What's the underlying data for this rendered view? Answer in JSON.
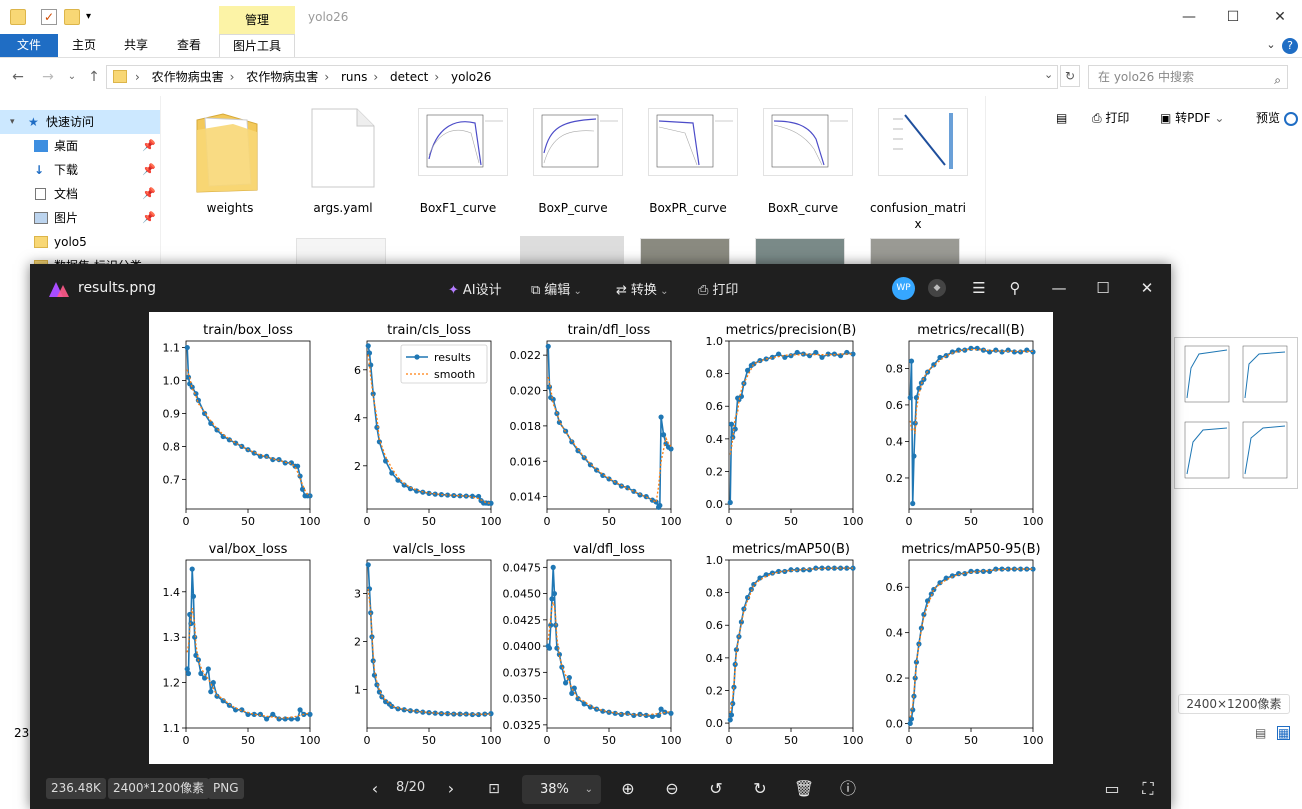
{
  "explorer": {
    "title": "yolo26",
    "context_tab": "管理",
    "ribbon_tabs": [
      "文件",
      "主页",
      "共享",
      "查看",
      "图片工具"
    ],
    "address": [
      "农作物病虫害",
      "农作物病虫害",
      "runs",
      "detect",
      "yolo26"
    ],
    "search_placeholder": "在 yolo26 中搜索",
    "nav": [
      {
        "label": "快速访问",
        "icon": "star-icon"
      },
      {
        "label": "桌面",
        "icon": "desktop-icon",
        "pinned": true
      },
      {
        "label": "下载",
        "icon": "download-icon",
        "pinned": true
      },
      {
        "label": "文档",
        "icon": "document-icon",
        "pinned": true
      },
      {
        "label": "图片",
        "icon": "picture-icon",
        "pinned": true
      },
      {
        "label": "yolo5",
        "icon": "folder-icon"
      },
      {
        "label": "数据集 标识分类",
        "icon": "folder-icon"
      }
    ],
    "status_count": "23",
    "files": [
      {
        "name": "weights",
        "kind": "folder"
      },
      {
        "name": "args.yaml",
        "kind": "file"
      },
      {
        "name": "BoxF1_curve",
        "kind": "image"
      },
      {
        "name": "BoxP_curve",
        "kind": "image"
      },
      {
        "name": "BoxPR_curve",
        "kind": "image"
      },
      {
        "name": "BoxR_curve",
        "kind": "image"
      },
      {
        "name": "confusion_matrix",
        "kind": "image"
      }
    ],
    "toolbar": {
      "print": "打印",
      "to_pdf": "转PDF",
      "preview": "预览"
    },
    "image_size": "2400×1200像素"
  },
  "viewer": {
    "title": "results.png",
    "tools": {
      "ai": "AI设计",
      "edit": "编辑",
      "convert": "转换",
      "print": "打印"
    },
    "avatar": "WP",
    "file_size": "236.48K",
    "dimensions": "2400*1200像素",
    "format": "PNG",
    "page": "8/20",
    "zoom": "38%"
  },
  "chart_data": [
    {
      "type": "line",
      "title": "train/box_loss",
      "xlim": [
        0,
        100
      ],
      "ylim": [
        0.61,
        1.12
      ],
      "yticks": [
        "0.7",
        "0.8",
        "0.9",
        "1.0",
        "1.1"
      ],
      "x": [
        1,
        2,
        3,
        5,
        8,
        10,
        15,
        20,
        25,
        30,
        35,
        40,
        45,
        50,
        55,
        60,
        65,
        70,
        75,
        80,
        85,
        88,
        90,
        92,
        94,
        96,
        98,
        100
      ],
      "values": [
        1.1,
        1.01,
        0.99,
        0.98,
        0.96,
        0.94,
        0.9,
        0.87,
        0.85,
        0.83,
        0.82,
        0.81,
        0.8,
        0.79,
        0.78,
        0.77,
        0.77,
        0.76,
        0.76,
        0.75,
        0.75,
        0.74,
        0.74,
        0.71,
        0.67,
        0.65,
        0.65,
        0.65
      ]
    },
    {
      "type": "line",
      "title": "train/cls_loss",
      "legend": [
        "results",
        "smooth"
      ],
      "xlim": [
        0,
        100
      ],
      "ylim": [
        0.2,
        7.2
      ],
      "yticks": [
        "2",
        "4",
        "6"
      ],
      "x": [
        1,
        2,
        3,
        5,
        8,
        10,
        15,
        20,
        25,
        30,
        35,
        40,
        45,
        50,
        55,
        60,
        65,
        70,
        75,
        80,
        85,
        90,
        92,
        94,
        96,
        98,
        100
      ],
      "values": [
        7.0,
        6.7,
        6.2,
        5.0,
        3.6,
        3.0,
        2.2,
        1.7,
        1.4,
        1.2,
        1.05,
        0.95,
        0.9,
        0.85,
        0.82,
        0.8,
        0.78,
        0.76,
        0.75,
        0.74,
        0.73,
        0.72,
        0.55,
        0.45,
        0.45,
        0.44,
        0.44
      ]
    },
    {
      "type": "line",
      "title": "train/dfl_loss",
      "xlim": [
        0,
        100
      ],
      "ylim": [
        0.0133,
        0.0228
      ],
      "yticks": [
        "0.014",
        "0.016",
        "0.018",
        "0.020",
        "0.022"
      ],
      "x": [
        1,
        2,
        3,
        5,
        8,
        10,
        15,
        20,
        25,
        30,
        35,
        40,
        45,
        50,
        55,
        60,
        65,
        70,
        75,
        80,
        85,
        88,
        90,
        91,
        92,
        94,
        96,
        98,
        100
      ],
      "values": [
        0.0225,
        0.0202,
        0.0196,
        0.0195,
        0.0187,
        0.0182,
        0.0177,
        0.0171,
        0.0166,
        0.0162,
        0.0158,
        0.0155,
        0.0152,
        0.015,
        0.0148,
        0.0146,
        0.0145,
        0.0143,
        0.0141,
        0.014,
        0.0138,
        0.0137,
        0.0134,
        0.0135,
        0.0185,
        0.0175,
        0.017,
        0.0168,
        0.0167
      ]
    },
    {
      "type": "line",
      "title": "metrics/precision(B)",
      "xlim": [
        0,
        100
      ],
      "ylim": [
        -0.03,
        1.0
      ],
      "yticks": [
        "0.0",
        "0.2",
        "0.4",
        "0.6",
        "0.8",
        "1.0"
      ],
      "x": [
        1,
        2,
        3,
        5,
        7,
        8,
        10,
        12,
        15,
        18,
        20,
        25,
        30,
        35,
        40,
        45,
        50,
        55,
        60,
        65,
        70,
        75,
        80,
        85,
        90,
        95,
        100
      ],
      "values": [
        0.01,
        0.49,
        0.41,
        0.46,
        0.65,
        0.64,
        0.66,
        0.74,
        0.82,
        0.85,
        0.86,
        0.88,
        0.89,
        0.9,
        0.92,
        0.9,
        0.91,
        0.93,
        0.92,
        0.91,
        0.93,
        0.9,
        0.92,
        0.92,
        0.91,
        0.93,
        0.92
      ]
    },
    {
      "type": "line",
      "title": "metrics/recall(B)",
      "xlim": [
        0,
        100
      ],
      "ylim": [
        0.03,
        0.95
      ],
      "yticks": [
        "0.2",
        "0.4",
        "0.6",
        "0.8"
      ],
      "x": [
        1,
        2,
        3,
        4,
        5,
        6,
        8,
        10,
        12,
        15,
        20,
        25,
        30,
        35,
        40,
        45,
        50,
        55,
        60,
        65,
        70,
        75,
        80,
        85,
        90,
        95,
        100
      ],
      "values": [
        0.64,
        0.84,
        0.06,
        0.32,
        0.5,
        0.64,
        0.69,
        0.72,
        0.74,
        0.78,
        0.82,
        0.86,
        0.87,
        0.89,
        0.9,
        0.9,
        0.91,
        0.91,
        0.9,
        0.89,
        0.9,
        0.89,
        0.9,
        0.89,
        0.89,
        0.9,
        0.89
      ]
    },
    {
      "type": "line",
      "title": "val/box_loss",
      "xlim": [
        0,
        100
      ],
      "ylim": [
        1.1,
        1.47
      ],
      "yticks": [
        "1.1",
        "1.2",
        "1.3",
        "1.4"
      ],
      "x": [
        1,
        2,
        3,
        4,
        5,
        6,
        7,
        8,
        10,
        12,
        15,
        18,
        20,
        22,
        25,
        30,
        35,
        40,
        45,
        50,
        55,
        60,
        65,
        70,
        75,
        80,
        85,
        90,
        92,
        95,
        100
      ],
      "values": [
        1.23,
        1.22,
        1.35,
        1.33,
        1.45,
        1.39,
        1.3,
        1.26,
        1.25,
        1.22,
        1.21,
        1.23,
        1.18,
        1.2,
        1.17,
        1.16,
        1.15,
        1.14,
        1.14,
        1.13,
        1.13,
        1.13,
        1.12,
        1.13,
        1.12,
        1.12,
        1.12,
        1.12,
        1.14,
        1.13,
        1.13
      ]
    },
    {
      "type": "line",
      "title": "val/cls_loss",
      "xlim": [
        0,
        100
      ],
      "ylim": [
        0.2,
        3.7
      ],
      "yticks": [
        "1",
        "2",
        "3"
      ],
      "x": [
        1,
        2,
        3,
        4,
        5,
        6,
        8,
        10,
        12,
        15,
        18,
        20,
        25,
        30,
        35,
        40,
        45,
        50,
        55,
        60,
        65,
        70,
        75,
        80,
        85,
        90,
        95,
        100
      ],
      "values": [
        3.6,
        3.1,
        2.6,
        2.1,
        1.6,
        1.3,
        1.1,
        0.95,
        0.85,
        0.75,
        0.7,
        0.65,
        0.6,
        0.58,
        0.56,
        0.55,
        0.53,
        0.52,
        0.51,
        0.5,
        0.5,
        0.49,
        0.49,
        0.49,
        0.48,
        0.48,
        0.49,
        0.5
      ]
    },
    {
      "type": "line",
      "title": "val/dfl_loss",
      "xlim": [
        0,
        100
      ],
      "ylim": [
        0.0322,
        0.0482
      ],
      "yticks": [
        "0.0325",
        "0.0350",
        "0.0375",
        "0.0400",
        "0.0425",
        "0.0450",
        "0.0475"
      ],
      "x": [
        1,
        2,
        3,
        4,
        5,
        6,
        7,
        8,
        10,
        12,
        15,
        18,
        20,
        22,
        25,
        30,
        35,
        40,
        45,
        50,
        55,
        60,
        65,
        70,
        75,
        80,
        85,
        90,
        92,
        95,
        100
      ],
      "values": [
        0.04,
        0.0398,
        0.042,
        0.0445,
        0.0475,
        0.045,
        0.042,
        0.0398,
        0.0392,
        0.038,
        0.0365,
        0.037,
        0.0355,
        0.036,
        0.035,
        0.0345,
        0.0342,
        0.034,
        0.0338,
        0.0337,
        0.0336,
        0.0335,
        0.0336,
        0.0334,
        0.0335,
        0.0334,
        0.0333,
        0.0334,
        0.034,
        0.0337,
        0.0336
      ]
    },
    {
      "type": "line",
      "title": "metrics/mAP50(B)",
      "xlim": [
        0,
        100
      ],
      "ylim": [
        -0.03,
        1.0
      ],
      "yticks": [
        "0.0",
        "0.2",
        "0.4",
        "0.6",
        "0.8",
        "1.0"
      ],
      "x": [
        1,
        2,
        3,
        4,
        5,
        6,
        8,
        10,
        12,
        15,
        18,
        20,
        25,
        30,
        35,
        40,
        45,
        50,
        55,
        60,
        65,
        70,
        75,
        80,
        85,
        90,
        95,
        100
      ],
      "values": [
        0.02,
        0.05,
        0.12,
        0.22,
        0.36,
        0.45,
        0.53,
        0.62,
        0.7,
        0.77,
        0.82,
        0.85,
        0.89,
        0.91,
        0.92,
        0.93,
        0.93,
        0.94,
        0.94,
        0.94,
        0.94,
        0.95,
        0.95,
        0.95,
        0.95,
        0.95,
        0.95,
        0.95
      ]
    },
    {
      "type": "line",
      "title": "metrics/mAP50-95(B)",
      "xlim": [
        0,
        100
      ],
      "ylim": [
        -0.02,
        0.72
      ],
      "yticks": [
        "0.0",
        "0.2",
        "0.4",
        "0.6"
      ],
      "x": [
        1,
        2,
        3,
        4,
        5,
        6,
        8,
        10,
        12,
        15,
        18,
        20,
        25,
        30,
        35,
        40,
        45,
        50,
        55,
        60,
        65,
        70,
        75,
        80,
        85,
        90,
        95,
        100
      ],
      "values": [
        0.0,
        0.02,
        0.06,
        0.12,
        0.2,
        0.27,
        0.35,
        0.42,
        0.48,
        0.54,
        0.57,
        0.59,
        0.62,
        0.64,
        0.65,
        0.66,
        0.66,
        0.67,
        0.67,
        0.67,
        0.67,
        0.68,
        0.68,
        0.68,
        0.68,
        0.68,
        0.68,
        0.68
      ]
    }
  ]
}
